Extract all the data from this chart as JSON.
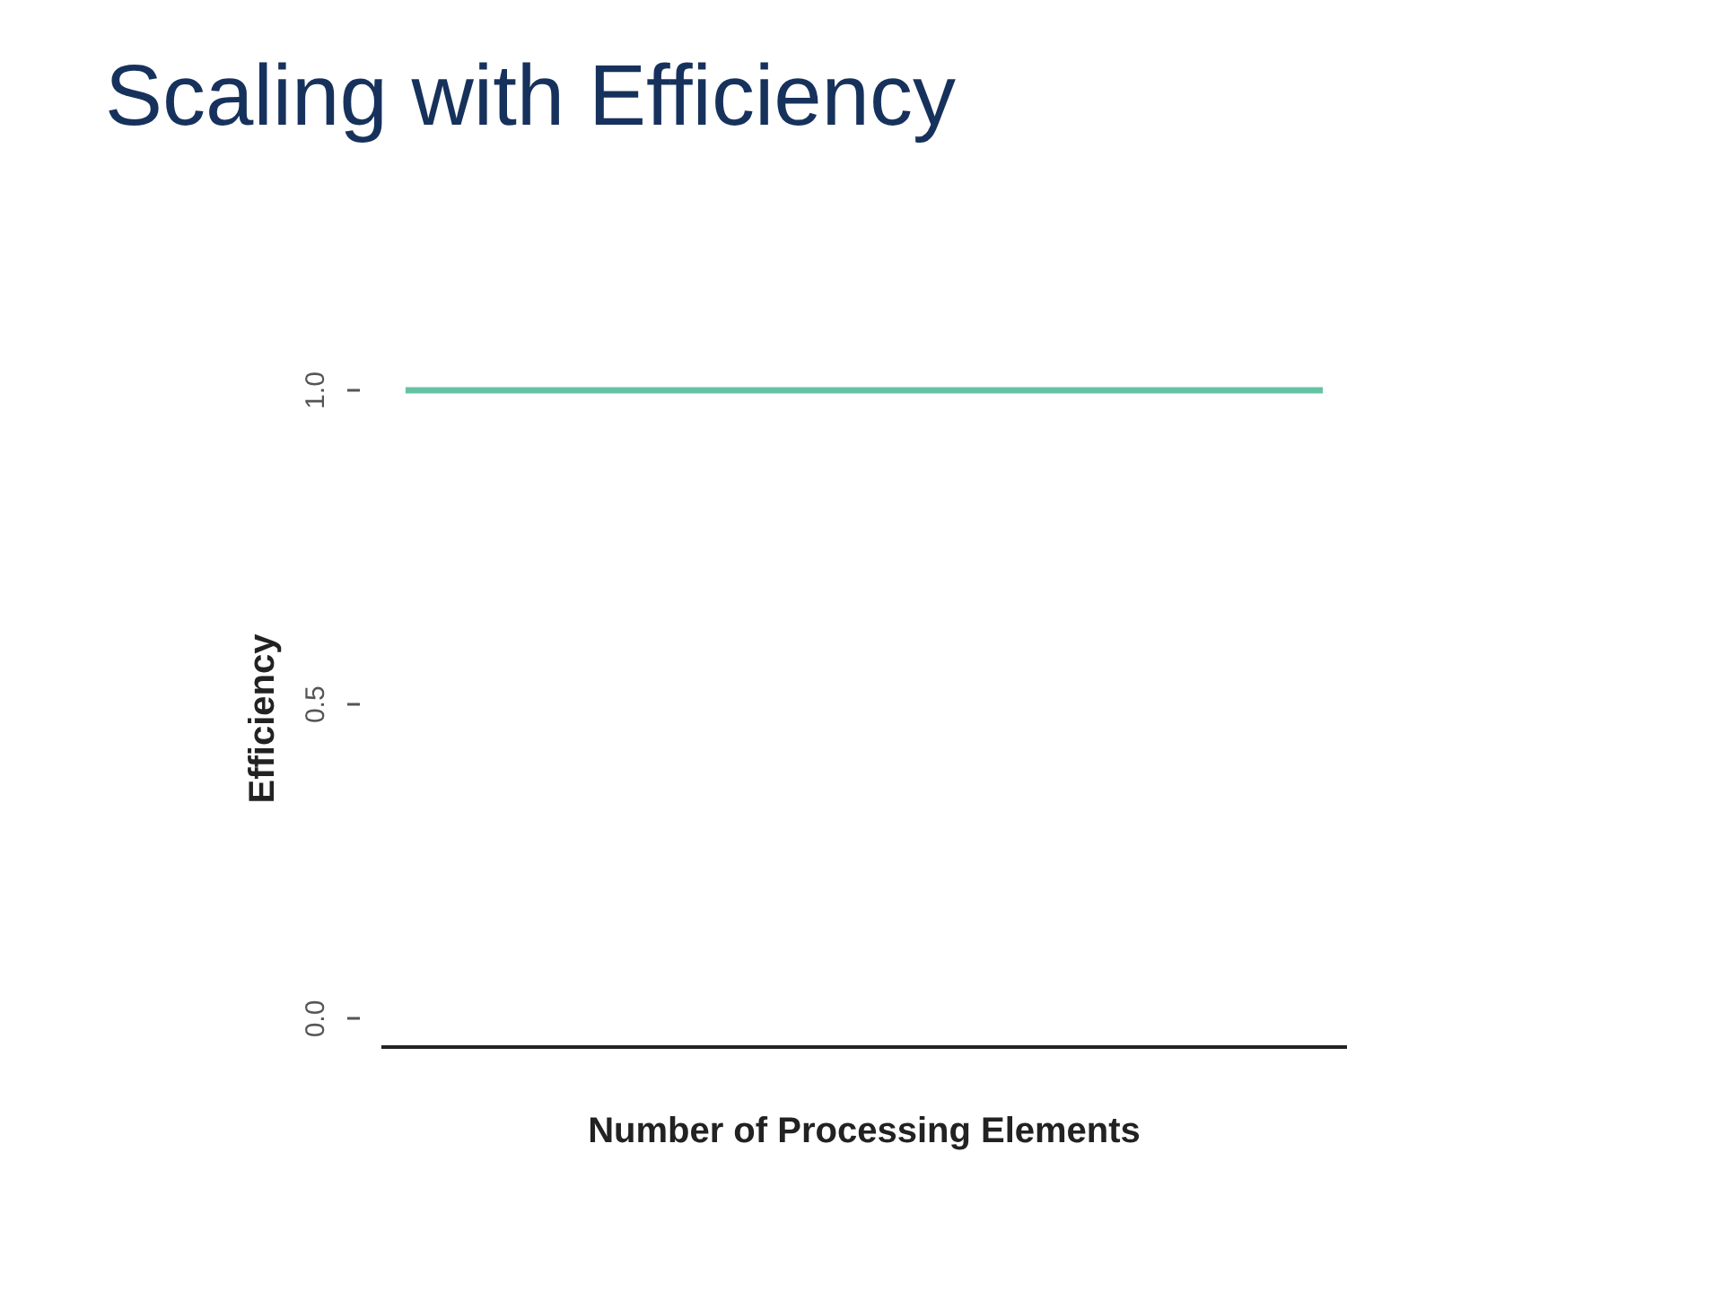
{
  "chart_data": {
    "type": "line",
    "title": "Scaling with Efficiency",
    "xlabel": "Number of Processing Elements",
    "ylabel": "Efficiency",
    "categories": [
      null,
      null,
      null,
      null,
      null,
      null,
      null,
      null,
      null,
      null,
      null,
      null,
      null,
      null,
      null,
      null,
      null,
      null,
      null,
      null
    ],
    "series": [
      {
        "color": "#66c2a5",
        "values": [
          1,
          1,
          1,
          1,
          1,
          1,
          1,
          1,
          1,
          1,
          1,
          1,
          1,
          1,
          1,
          1,
          1,
          1,
          1,
          1
        ]
      }
    ],
    "ylim": [
      -0.045,
      1
    ],
    "yticks": [
      {
        "value": 0,
        "label": "0.0"
      },
      {
        "value": 0.5,
        "label": "0.5"
      },
      {
        "value": 1,
        "label": "1.0"
      }
    ],
    "grid": false,
    "tick_labels": "y",
    "line_style": "solid"
  }
}
